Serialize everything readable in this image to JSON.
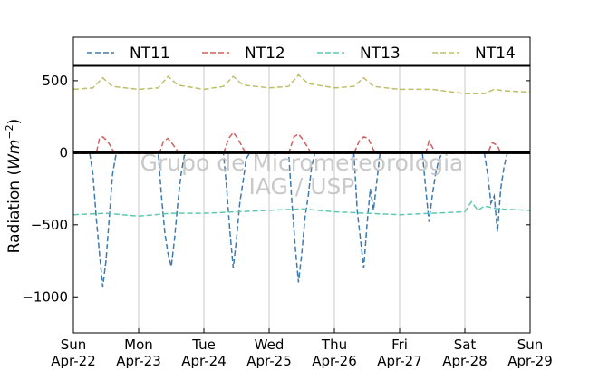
{
  "chart_data": {
    "type": "line",
    "ylabel_text": "Radiation (",
    "ylabel_unit": "Wm",
    "ylabel_exp": "−2",
    "ylabel_close": ")",
    "ylim": [
      -1250,
      600
    ],
    "xlim": [
      0,
      7
    ],
    "grid": "vertical-only",
    "legend_position": "top",
    "yticks": [
      {
        "value": 500,
        "label": "500"
      },
      {
        "value": 0,
        "label": "0"
      },
      {
        "value": -500,
        "label": "−500"
      },
      {
        "value": -1000,
        "label": "−1000"
      }
    ],
    "xticks": [
      {
        "value": 0,
        "day": "Sun",
        "date": "Apr-22"
      },
      {
        "value": 1,
        "day": "Mon",
        "date": "Apr-23"
      },
      {
        "value": 2,
        "day": "Tue",
        "date": "Apr-24"
      },
      {
        "value": 3,
        "day": "Wed",
        "date": "Apr-25"
      },
      {
        "value": 4,
        "day": "Thu",
        "date": "Apr-26"
      },
      {
        "value": 5,
        "day": "Fri",
        "date": "Apr-27"
      },
      {
        "value": 6,
        "day": "Sat",
        "date": "Apr-28"
      },
      {
        "value": 7,
        "day": "Sun",
        "date": "Apr-29"
      }
    ],
    "watermark_line1": "Grupo de Micrometeorologia",
    "watermark_line2": "IAG / USP",
    "zero_line": true,
    "series": [
      {
        "name": "NT11",
        "color": "#3d7ab0",
        "points": [
          [
            0.0,
            -5
          ],
          [
            0.25,
            -5
          ],
          [
            0.3,
            -150
          ],
          [
            0.35,
            -450
          ],
          [
            0.4,
            -700
          ],
          [
            0.45,
            -930
          ],
          [
            0.5,
            -750
          ],
          [
            0.55,
            -450
          ],
          [
            0.6,
            -150
          ],
          [
            0.65,
            -20
          ],
          [
            0.7,
            -5
          ],
          [
            1.0,
            -5
          ],
          [
            1.3,
            -5
          ],
          [
            1.35,
            -300
          ],
          [
            1.4,
            -550
          ],
          [
            1.45,
            -700
          ],
          [
            1.5,
            -790
          ],
          [
            1.55,
            -600
          ],
          [
            1.6,
            -350
          ],
          [
            1.65,
            -150
          ],
          [
            1.7,
            -20
          ],
          [
            1.75,
            -5
          ],
          [
            2.0,
            -5
          ],
          [
            2.3,
            -5
          ],
          [
            2.35,
            -250
          ],
          [
            2.4,
            -550
          ],
          [
            2.45,
            -800
          ],
          [
            2.5,
            -600
          ],
          [
            2.55,
            -350
          ],
          [
            2.6,
            -200
          ],
          [
            2.65,
            -40
          ],
          [
            2.7,
            -5
          ],
          [
            3.0,
            -5
          ],
          [
            3.3,
            -5
          ],
          [
            3.35,
            -350
          ],
          [
            3.4,
            -650
          ],
          [
            3.45,
            -900
          ],
          [
            3.5,
            -700
          ],
          [
            3.55,
            -450
          ],
          [
            3.6,
            -300
          ],
          [
            3.65,
            -100
          ],
          [
            3.7,
            -5
          ],
          [
            4.0,
            -5
          ],
          [
            4.3,
            -5
          ],
          [
            4.35,
            -400
          ],
          [
            4.4,
            -600
          ],
          [
            4.45,
            -800
          ],
          [
            4.5,
            -500
          ],
          [
            4.55,
            -250
          ],
          [
            4.6,
            -400
          ],
          [
            4.65,
            -200
          ],
          [
            4.7,
            -5
          ],
          [
            5.0,
            -5
          ],
          [
            5.35,
            -5
          ],
          [
            5.4,
            -250
          ],
          [
            5.45,
            -480
          ],
          [
            5.5,
            -300
          ],
          [
            5.55,
            -150
          ],
          [
            5.6,
            -50
          ],
          [
            5.65,
            -5
          ],
          [
            6.0,
            -5
          ],
          [
            6.3,
            -5
          ],
          [
            6.35,
            -150
          ],
          [
            6.4,
            -350
          ],
          [
            6.45,
            -300
          ],
          [
            6.5,
            -550
          ],
          [
            6.55,
            -250
          ],
          [
            6.6,
            -100
          ],
          [
            6.65,
            -5
          ],
          [
            7.0,
            -5
          ]
        ]
      },
      {
        "name": "NT12",
        "color": "#d45e5e",
        "points": [
          [
            0.0,
            -5
          ],
          [
            0.35,
            -5
          ],
          [
            0.4,
            100
          ],
          [
            0.45,
            110
          ],
          [
            0.5,
            90
          ],
          [
            0.55,
            60
          ],
          [
            0.6,
            20
          ],
          [
            0.65,
            -5
          ],
          [
            1.0,
            -5
          ],
          [
            1.32,
            -5
          ],
          [
            1.38,
            80
          ],
          [
            1.45,
            100
          ],
          [
            1.52,
            60
          ],
          [
            1.6,
            10
          ],
          [
            1.65,
            -5
          ],
          [
            2.0,
            -5
          ],
          [
            2.3,
            -5
          ],
          [
            2.38,
            100
          ],
          [
            2.45,
            140
          ],
          [
            2.52,
            100
          ],
          [
            2.6,
            30
          ],
          [
            2.65,
            -5
          ],
          [
            3.0,
            -5
          ],
          [
            3.3,
            -5
          ],
          [
            3.38,
            110
          ],
          [
            3.45,
            130
          ],
          [
            3.52,
            90
          ],
          [
            3.6,
            30
          ],
          [
            3.65,
            -5
          ],
          [
            4.0,
            -5
          ],
          [
            4.3,
            -5
          ],
          [
            4.38,
            80
          ],
          [
            4.45,
            110
          ],
          [
            4.52,
            100
          ],
          [
            4.6,
            20
          ],
          [
            4.65,
            -5
          ],
          [
            5.0,
            -5
          ],
          [
            5.4,
            -5
          ],
          [
            5.45,
            80
          ],
          [
            5.5,
            40
          ],
          [
            5.55,
            -5
          ],
          [
            6.0,
            -5
          ],
          [
            6.35,
            -5
          ],
          [
            6.42,
            70
          ],
          [
            6.5,
            50
          ],
          [
            6.55,
            -5
          ],
          [
            7.0,
            -5
          ]
        ]
      },
      {
        "name": "NT13",
        "color": "#5fc9b0",
        "points": [
          [
            0.0,
            -430
          ],
          [
            0.5,
            -420
          ],
          [
            1.0,
            -440
          ],
          [
            1.5,
            -420
          ],
          [
            2.0,
            -420
          ],
          [
            2.5,
            -410
          ],
          [
            3.0,
            -400
          ],
          [
            3.5,
            -390
          ],
          [
            4.0,
            -410
          ],
          [
            4.5,
            -420
          ],
          [
            5.0,
            -430
          ],
          [
            5.5,
            -420
          ],
          [
            6.0,
            -410
          ],
          [
            6.1,
            -340
          ],
          [
            6.2,
            -400
          ],
          [
            6.3,
            -370
          ],
          [
            6.5,
            -390
          ],
          [
            7.0,
            -400
          ]
        ]
      },
      {
        "name": "NT14",
        "color": "#bfbf6a",
        "points": [
          [
            0.0,
            440
          ],
          [
            0.3,
            450
          ],
          [
            0.45,
            520
          ],
          [
            0.6,
            460
          ],
          [
            1.0,
            440
          ],
          [
            1.3,
            450
          ],
          [
            1.45,
            530
          ],
          [
            1.6,
            470
          ],
          [
            2.0,
            440
          ],
          [
            2.3,
            460
          ],
          [
            2.45,
            530
          ],
          [
            2.6,
            470
          ],
          [
            3.0,
            450
          ],
          [
            3.3,
            460
          ],
          [
            3.45,
            540
          ],
          [
            3.6,
            480
          ],
          [
            4.0,
            450
          ],
          [
            4.3,
            460
          ],
          [
            4.45,
            520
          ],
          [
            4.6,
            460
          ],
          [
            5.0,
            440
          ],
          [
            5.3,
            440
          ],
          [
            5.5,
            440
          ],
          [
            6.0,
            410
          ],
          [
            6.3,
            410
          ],
          [
            6.45,
            440
          ],
          [
            6.6,
            430
          ],
          [
            7.0,
            420
          ]
        ]
      }
    ]
  }
}
